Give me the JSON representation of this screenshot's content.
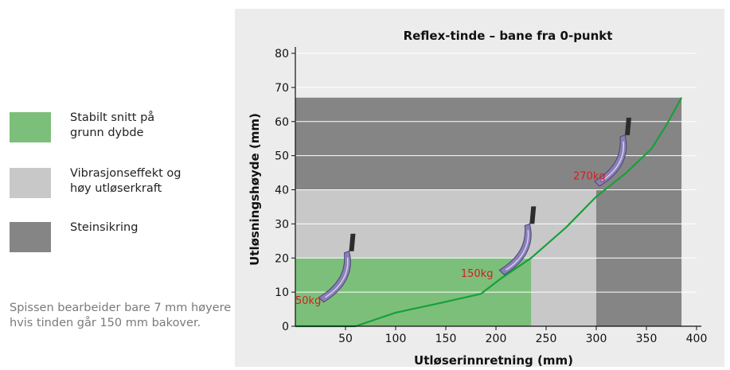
{
  "legend": {
    "items": [
      {
        "label": "Stabilt snitt på\ngrunn dybde",
        "color": "#7cbf7a"
      },
      {
        "label": "Vibrasjonseffekt og\nhøy utløserkraft",
        "color": "#c8c8c8"
      },
      {
        "label": "Steinsikring",
        "color": "#858585"
      }
    ],
    "note": "Spissen bearbeider bare 7 mm høyere hvis tinden går 150 mm bakover."
  },
  "chart_data": {
    "type": "line",
    "title": "Reflex-tinde – bane fra 0-punkt",
    "xlabel": "Utløserinnretning (mm)",
    "ylabel": "Utløsningshøyde (mm)",
    "xlim": [
      0,
      400
    ],
    "ylim": [
      0,
      80
    ],
    "xticks": [
      50,
      100,
      150,
      200,
      250,
      300,
      350,
      400
    ],
    "yticks": [
      0,
      10,
      20,
      30,
      40,
      50,
      60,
      70,
      80
    ],
    "grid": true,
    "regions": [
      {
        "name": "Steinsikring",
        "x": [
          0,
          385
        ],
        "y": [
          0,
          67
        ],
        "color": "#858585"
      },
      {
        "name": "Vibrasjonseffekt og høy utløserkraft",
        "x": [
          0,
          300
        ],
        "y": [
          0,
          40
        ],
        "color": "#c8c8c8"
      },
      {
        "name": "Stabilt snitt på grunn dybde",
        "x": [
          0,
          235
        ],
        "y": [
          0,
          20
        ],
        "color": "#7cbf7a"
      }
    ],
    "series": [
      {
        "color": "#17a03a",
        "x": [
          0,
          60,
          100,
          140,
          185,
          205,
          235,
          270,
          300,
          330,
          355,
          370,
          385
        ],
        "y": [
          0,
          0,
          4,
          6.5,
          9.5,
          14,
          20,
          29,
          38,
          45,
          52,
          59,
          67
        ]
      }
    ],
    "annotations": [
      {
        "text": "50kg",
        "x": 0,
        "y": 6.5,
        "color": "#d02020"
      },
      {
        "text": "150kg",
        "x": 165,
        "y": 14.5,
        "color": "#d02020"
      },
      {
        "text": "270kg",
        "x": 277,
        "y": 43,
        "color": "#d02020"
      }
    ]
  }
}
